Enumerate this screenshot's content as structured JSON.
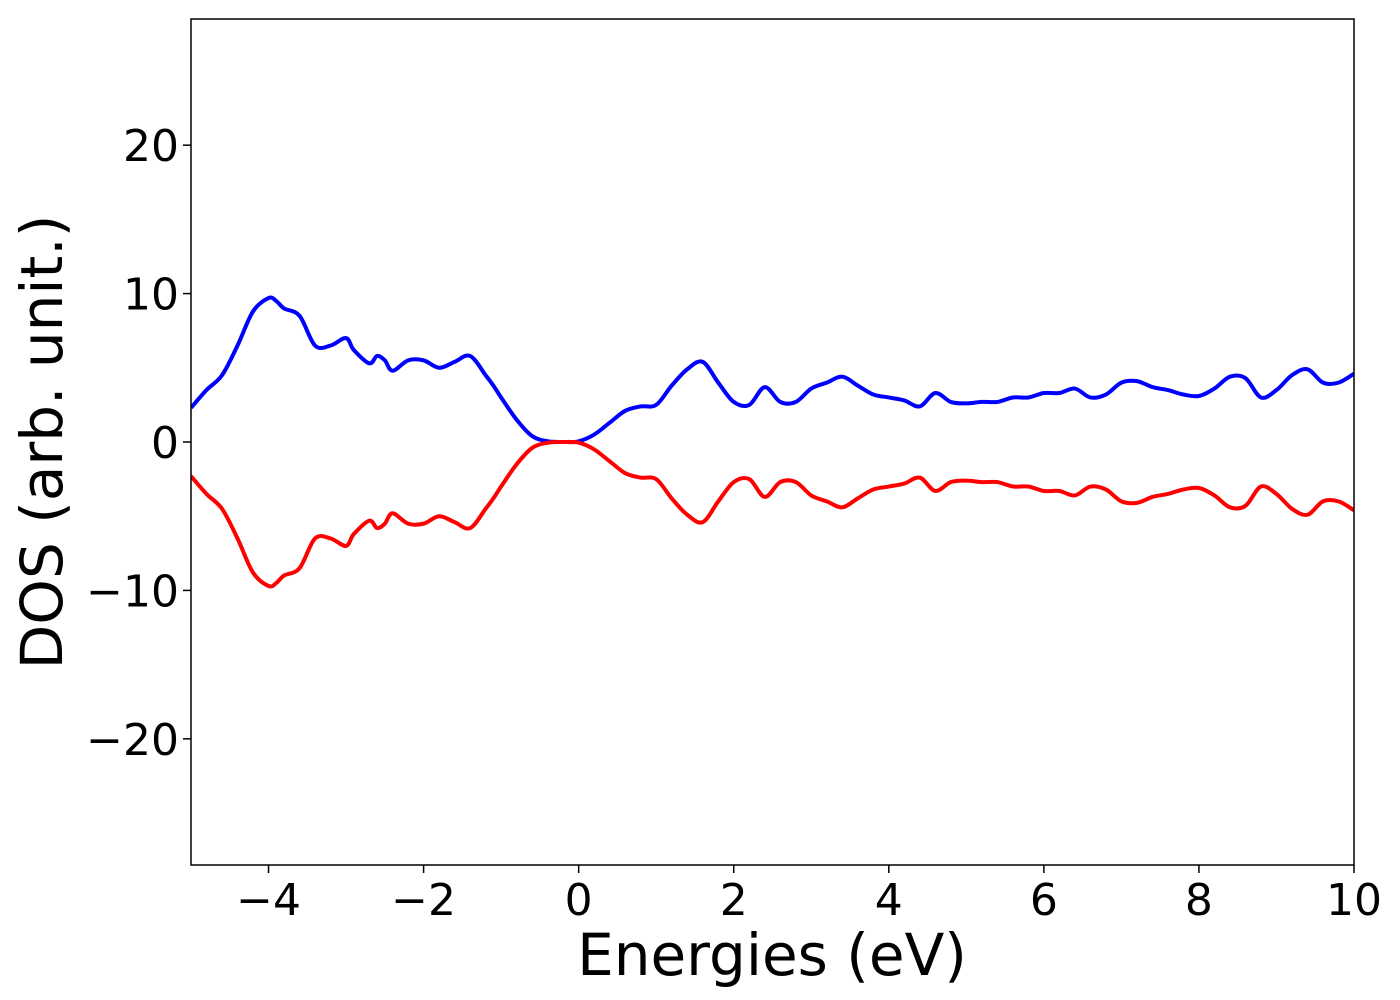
{
  "chart_data": {
    "type": "line",
    "title": "",
    "xlabel": "Energies (eV)",
    "ylabel": "DOS (arb. unit.)",
    "xlim": [
      -5,
      10
    ],
    "ylim": [
      -28.5,
      28.5
    ],
    "xticks": [
      -4,
      -2,
      0,
      2,
      4,
      6,
      8,
      10
    ],
    "xtick_labels": [
      "−4",
      "−2",
      "0",
      "2",
      "4",
      "6",
      "8",
      "10"
    ],
    "yticks": [
      -20,
      -10,
      0,
      10,
      20
    ],
    "ytick_labels": [
      "−20",
      "−10",
      "0",
      "10",
      "20"
    ],
    "grid": false,
    "legend": "none",
    "series": [
      {
        "color": "#0000ff",
        "x": [
          -5.0,
          -4.8,
          -4.6,
          -4.4,
          -4.2,
          -4.0,
          -3.9,
          -3.8,
          -3.6,
          -3.4,
          -3.2,
          -3.0,
          -2.9,
          -2.7,
          -2.6,
          -2.5,
          -2.4,
          -2.2,
          -2.0,
          -1.8,
          -1.6,
          -1.4,
          -1.2,
          -1.1,
          -1.0,
          -0.8,
          -0.6,
          -0.4,
          -0.2,
          0.0,
          0.2,
          0.4,
          0.6,
          0.8,
          1.0,
          1.2,
          1.4,
          1.6,
          1.8,
          2.0,
          2.2,
          2.4,
          2.6,
          2.8,
          3.0,
          3.2,
          3.4,
          3.6,
          3.8,
          4.0,
          4.2,
          4.4,
          4.6,
          4.8,
          5.0,
          5.2,
          5.4,
          5.6,
          5.8,
          6.0,
          6.2,
          6.4,
          6.6,
          6.8,
          7.0,
          7.2,
          7.4,
          7.6,
          7.8,
          8.0,
          8.2,
          8.4,
          8.6,
          8.8,
          9.0,
          9.2,
          9.4,
          9.6,
          9.8,
          10.0
        ],
        "y": [
          2.3,
          3.5,
          4.5,
          6.5,
          8.8,
          9.7,
          9.5,
          9.0,
          8.5,
          6.5,
          6.5,
          7.0,
          6.2,
          5.3,
          5.8,
          5.5,
          4.8,
          5.5,
          5.5,
          5.0,
          5.4,
          5.8,
          4.5,
          3.8,
          3.0,
          1.5,
          0.4,
          0.05,
          0.0,
          0.05,
          0.5,
          1.3,
          2.1,
          2.4,
          2.5,
          3.8,
          4.9,
          5.4,
          4.0,
          2.7,
          2.5,
          3.7,
          2.7,
          2.7,
          3.6,
          4.0,
          4.4,
          3.8,
          3.2,
          3.0,
          2.8,
          2.4,
          3.3,
          2.7,
          2.6,
          2.7,
          2.7,
          3.0,
          3.0,
          3.3,
          3.3,
          3.6,
          3.0,
          3.2,
          4.0,
          4.1,
          3.7,
          3.5,
          3.2,
          3.1,
          3.6,
          4.4,
          4.3,
          3.0,
          3.5,
          4.5,
          4.9,
          4.0,
          4.0,
          4.6
        ]
      },
      {
        "color": "#ff0000",
        "x": [
          -5.0,
          -4.8,
          -4.6,
          -4.4,
          -4.2,
          -4.0,
          -3.9,
          -3.8,
          -3.6,
          -3.4,
          -3.2,
          -3.0,
          -2.9,
          -2.7,
          -2.6,
          -2.5,
          -2.4,
          -2.2,
          -2.0,
          -1.8,
          -1.6,
          -1.4,
          -1.2,
          -1.1,
          -1.0,
          -0.8,
          -0.6,
          -0.4,
          -0.2,
          0.0,
          0.2,
          0.4,
          0.6,
          0.8,
          1.0,
          1.2,
          1.4,
          1.6,
          1.8,
          2.0,
          2.2,
          2.4,
          2.6,
          2.8,
          3.0,
          3.2,
          3.4,
          3.6,
          3.8,
          4.0,
          4.2,
          4.4,
          4.6,
          4.8,
          5.0,
          5.2,
          5.4,
          5.6,
          5.8,
          6.0,
          6.2,
          6.4,
          6.6,
          6.8,
          7.0,
          7.2,
          7.4,
          7.6,
          7.8,
          8.0,
          8.2,
          8.4,
          8.6,
          8.8,
          9.0,
          9.2,
          9.4,
          9.6,
          9.8,
          10.0
        ],
        "y": [
          -2.3,
          -3.5,
          -4.5,
          -6.5,
          -8.8,
          -9.7,
          -9.5,
          -9.0,
          -8.5,
          -6.5,
          -6.5,
          -7.0,
          -6.2,
          -5.3,
          -5.8,
          -5.5,
          -4.8,
          -5.5,
          -5.5,
          -5.0,
          -5.4,
          -5.8,
          -4.5,
          -3.8,
          -3.0,
          -1.5,
          -0.4,
          -0.05,
          0.0,
          -0.05,
          -0.5,
          -1.3,
          -2.1,
          -2.4,
          -2.5,
          -3.8,
          -4.9,
          -5.4,
          -4.0,
          -2.7,
          -2.5,
          -3.7,
          -2.7,
          -2.7,
          -3.6,
          -4.0,
          -4.4,
          -3.8,
          -3.2,
          -3.0,
          -2.8,
          -2.4,
          -3.3,
          -2.7,
          -2.6,
          -2.7,
          -2.7,
          -3.0,
          -3.0,
          -3.3,
          -3.3,
          -3.6,
          -3.0,
          -3.2,
          -4.0,
          -4.1,
          -3.7,
          -3.5,
          -3.2,
          -3.1,
          -3.6,
          -4.4,
          -4.3,
          -3.0,
          -3.5,
          -4.5,
          -4.9,
          -4.0,
          -4.0,
          -4.6
        ]
      }
    ]
  }
}
